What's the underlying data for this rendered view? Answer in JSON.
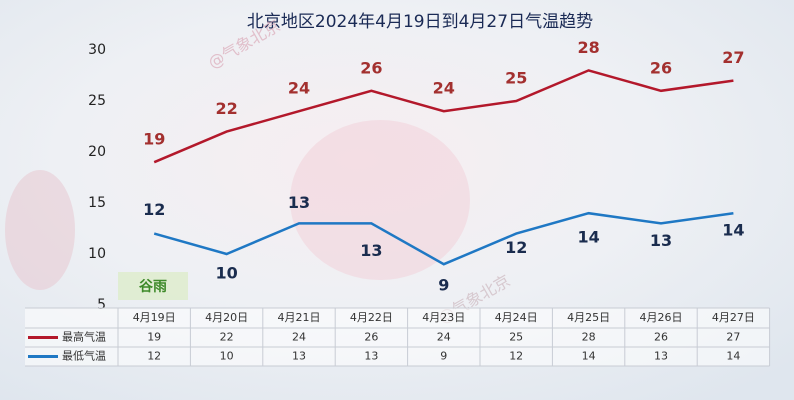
{
  "chart_data": {
    "type": "line",
    "title": "北京地区2024年4月19日到4月27日气温趋势",
    "categories": [
      "4月19日",
      "4月20日",
      "4月21日",
      "4月22日",
      "4月23日",
      "4月24日",
      "4月25日",
      "4月26日",
      "4月27日"
    ],
    "series": [
      {
        "name": "最高气温",
        "color": "#b3182b",
        "values": [
          19,
          22,
          24,
          26,
          24,
          25,
          28,
          26,
          27
        ]
      },
      {
        "name": "最低气温",
        "color": "#1f78c4",
        "values": [
          12,
          10,
          13,
          13,
          9,
          12,
          14,
          13,
          14
        ]
      }
    ],
    "ylim": [
      5,
      30
    ],
    "yticks": [
      5,
      10,
      15,
      20,
      25,
      30
    ],
    "grid": false,
    "annotation": "谷雨",
    "watermark": "@气象北京"
  }
}
